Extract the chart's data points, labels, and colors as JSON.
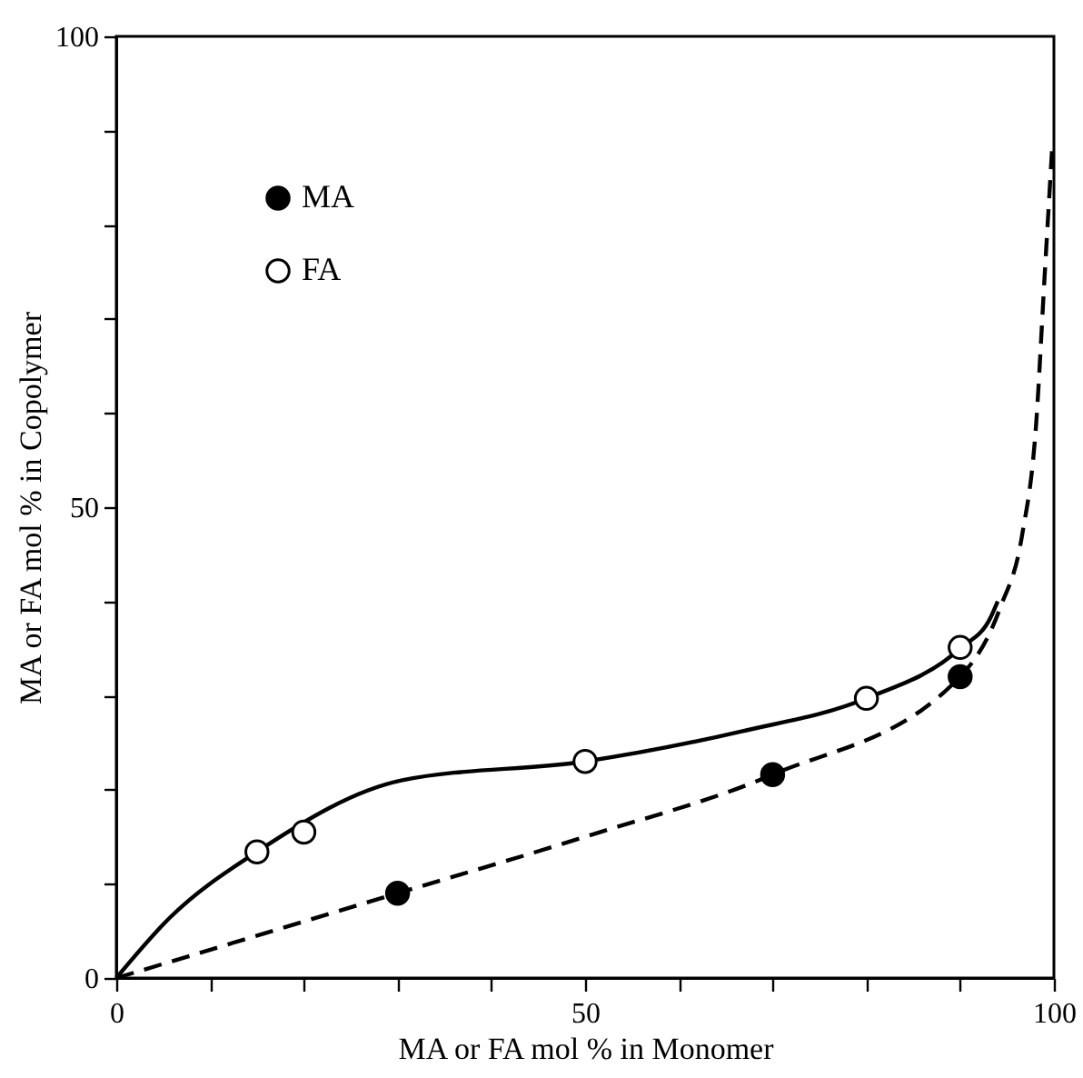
{
  "chart_data": {
    "type": "scatter",
    "xlabel": "MA or FA mol % in Monomer",
    "ylabel": "MA or FA mol % in Copolymer",
    "xlim": [
      0,
      100
    ],
    "ylim": [
      0,
      100
    ],
    "xticks": [
      0,
      {
        "value": 10,
        "label": null
      },
      {
        "value": 20,
        "label": null
      },
      {
        "value": 30,
        "label": null
      },
      {
        "value": 40,
        "label": null
      },
      50,
      {
        "value": 60,
        "label": null
      },
      {
        "value": 70,
        "label": null
      },
      {
        "value": 80,
        "label": null
      },
      {
        "value": 90,
        "label": null
      },
      100
    ],
    "yticks": [
      0,
      {
        "value": 10,
        "label": null
      },
      {
        "value": 20,
        "label": null
      },
      {
        "value": 30,
        "label": null
      },
      {
        "value": 40,
        "label": null
      },
      50,
      {
        "value": 60,
        "label": null
      },
      {
        "value": 70,
        "label": null
      },
      {
        "value": 80,
        "label": null
      },
      {
        "value": 90,
        "label": null
      },
      100
    ],
    "legend": "top left",
    "grid": false,
    "series": [
      {
        "name": "MA",
        "marker": "circle",
        "color": "#000000",
        "x": [
          30,
          70,
          90
        ],
        "values": [
          9,
          21.6,
          32
        ]
      },
      {
        "name": "FA",
        "marker": "circle",
        "color": "#ffffff",
        "x": [
          15,
          20,
          50,
          80,
          90
        ],
        "values": [
          13.4,
          15.5,
          23,
          29.7,
          35.1
        ]
      },
      {
        "type": "line",
        "line_style": "solid",
        "color": "#000000",
        "x": [
          0,
          5.7,
          15,
          30.5,
          50,
          66.7,
          80,
          90,
          93.3,
          94
        ],
        "values": [
          0,
          6.4,
          13.4,
          21,
          23,
          26.2,
          29.7,
          35,
          38.4,
          40
        ]
      },
      {
        "type": "line",
        "line_style": "dashed",
        "color": "#000000",
        "x": [
          0,
          30,
          50,
          70,
          90,
          94.3,
          96.6,
          98.1,
          99,
          99.8
        ],
        "values": [
          0,
          9,
          15,
          21.6,
          32,
          39.4,
          47,
          58.8,
          74.4,
          88
        ]
      }
    ]
  }
}
